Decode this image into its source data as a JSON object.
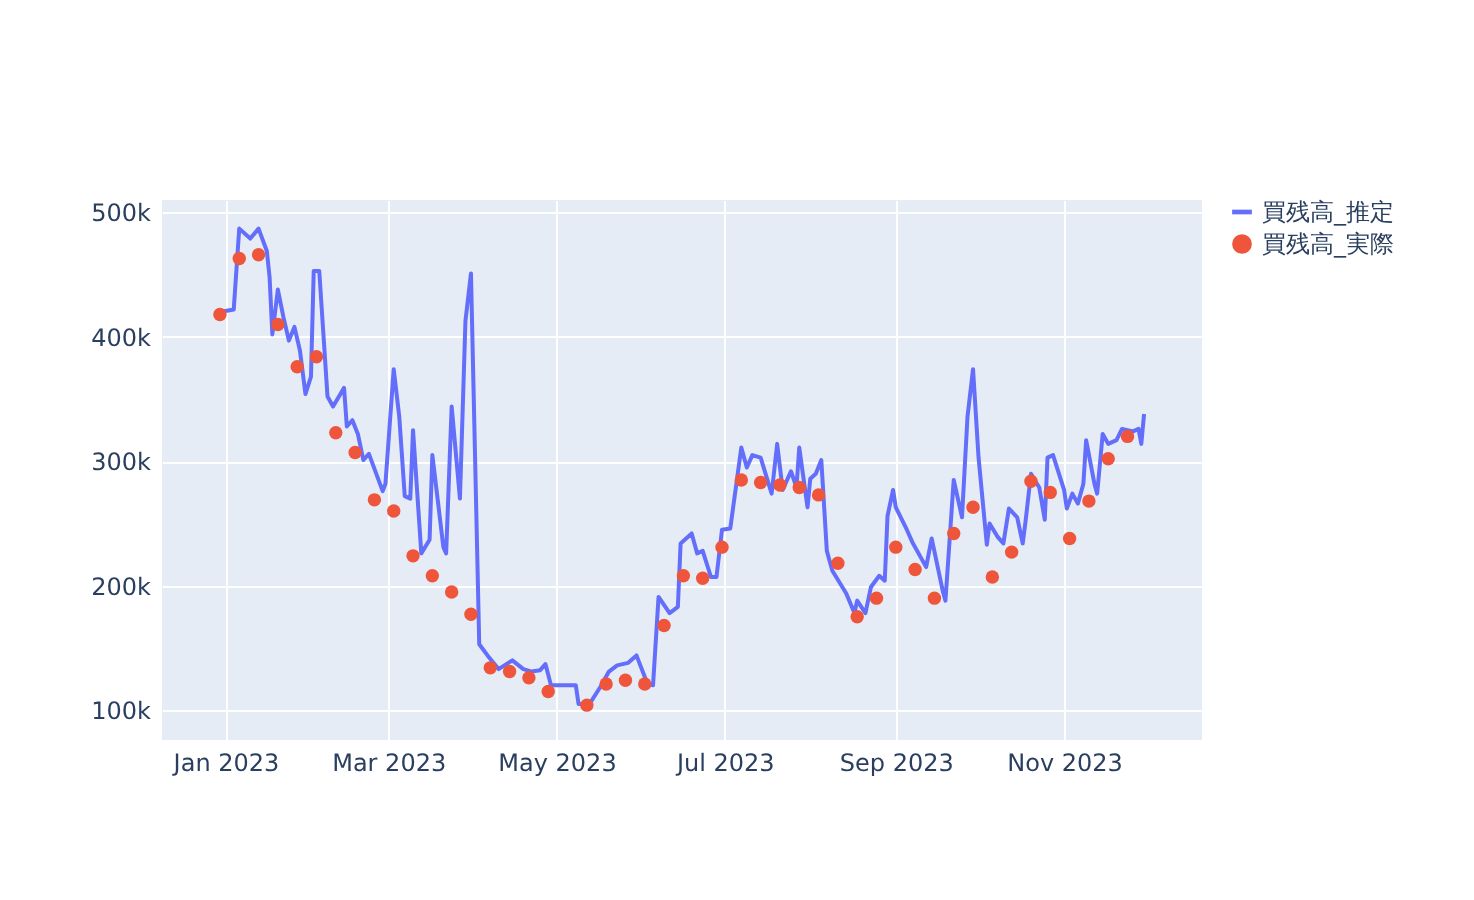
{
  "chart_data": {
    "type": "line",
    "xlim": [
      "2022-12-09",
      "2023-12-21"
    ],
    "xticks": [
      {
        "value": "2023-01-01",
        "label": "Jan 2023"
      },
      {
        "value": "2023-03-01",
        "label": "Mar 2023"
      },
      {
        "value": "2023-05-01",
        "label": "May 2023"
      },
      {
        "value": "2023-07-01",
        "label": "Jul 2023"
      },
      {
        "value": "2023-09-01",
        "label": "Sep 2023"
      },
      {
        "value": "2023-11-01",
        "label": "Nov 2023"
      }
    ],
    "ylim": [
      76000,
      510000
    ],
    "yticks": [
      {
        "value": 100000,
        "label": "100k"
      },
      {
        "value": 200000,
        "label": "200k"
      },
      {
        "value": 300000,
        "label": "300k"
      },
      {
        "value": 400000,
        "label": "400k"
      },
      {
        "value": 500000,
        "label": "500k"
      }
    ],
    "grid": true,
    "legend": "top right",
    "line_style": "solid",
    "series": [
      {
        "name": "買残高_推定",
        "type": "line",
        "marker": "none",
        "color": "#636efa",
        "x": [
          "2022-12-30",
          "2023-01-04",
          "2023-01-06",
          "2023-01-10",
          "2023-01-13",
          "2023-01-16",
          "2023-01-17",
          "2023-01-18",
          "2023-01-20",
          "2023-01-22",
          "2023-01-24",
          "2023-01-26",
          "2023-01-28",
          "2023-01-30",
          "2023-02-01",
          "2023-02-02",
          "2023-02-04",
          "2023-02-07",
          "2023-02-09",
          "2023-02-13",
          "2023-02-14",
          "2023-02-16",
          "2023-02-18",
          "2023-02-20",
          "2023-02-22",
          "2023-02-27",
          "2023-02-28",
          "2023-03-03",
          "2023-03-05",
          "2023-03-07",
          "2023-03-09",
          "2023-03-10",
          "2023-03-13",
          "2023-03-16",
          "2023-03-17",
          "2023-03-21",
          "2023-03-22",
          "2023-03-24",
          "2023-03-27",
          "2023-03-29",
          "2023-03-31",
          "2023-04-03",
          "2023-04-06",
          "2023-04-10",
          "2023-04-15",
          "2023-04-19",
          "2023-04-22",
          "2023-04-25",
          "2023-04-27",
          "2023-04-29",
          "2023-05-08",
          "2023-05-09",
          "2023-05-13",
          "2023-05-17",
          "2023-05-20",
          "2023-05-23",
          "2023-05-27",
          "2023-05-30",
          "2023-06-03",
          "2023-06-05",
          "2023-06-07",
          "2023-06-11",
          "2023-06-14",
          "2023-06-15",
          "2023-06-19",
          "2023-06-21",
          "2023-06-23",
          "2023-06-26",
          "2023-06-28",
          "2023-06-30",
          "2023-07-03",
          "2023-07-07",
          "2023-07-09",
          "2023-07-11",
          "2023-07-14",
          "2023-07-18",
          "2023-07-20",
          "2023-07-22",
          "2023-07-25",
          "2023-07-27",
          "2023-07-28",
          "2023-07-31",
          "2023-08-01",
          "2023-08-03",
          "2023-08-05",
          "2023-08-07",
          "2023-08-09",
          "2023-08-14",
          "2023-08-17",
          "2023-08-18",
          "2023-08-21",
          "2023-08-23",
          "2023-08-26",
          "2023-08-28",
          "2023-08-29",
          "2023-08-31",
          "2023-09-01",
          "2023-09-05",
          "2023-09-07",
          "2023-09-10",
          "2023-09-12",
          "2023-09-14",
          "2023-09-18",
          "2023-09-19",
          "2023-09-22",
          "2023-09-25",
          "2023-09-27",
          "2023-09-29",
          "2023-10-01",
          "2023-10-04",
          "2023-10-05",
          "2023-10-08",
          "2023-10-10",
          "2023-10-12",
          "2023-10-15",
          "2023-10-17",
          "2023-10-18",
          "2023-10-20",
          "2023-10-23",
          "2023-10-25",
          "2023-10-26",
          "2023-10-28",
          "2023-11-01",
          "2023-11-02",
          "2023-11-04",
          "2023-11-06",
          "2023-11-08",
          "2023-11-09",
          "2023-11-12",
          "2023-11-13",
          "2023-11-15",
          "2023-11-17",
          "2023-11-20",
          "2023-11-22",
          "2023-11-26",
          "2023-11-28",
          "2023-11-29",
          "2023-11-30"
        ],
        "values": [
          420000,
          422000,
          487000,
          479000,
          487000,
          469000,
          448000,
          402000,
          438000,
          416000,
          397000,
          408000,
          389000,
          354000,
          368000,
          453000,
          453000,
          352000,
          344000,
          359000,
          328000,
          333000,
          322000,
          301000,
          306000,
          276000,
          282000,
          374000,
          336000,
          272000,
          270000,
          325000,
          226000,
          237000,
          305000,
          231000,
          226000,
          344000,
          270000,
          413000,
          451000,
          153000,
          144000,
          133000,
          140000,
          133000,
          131000,
          132000,
          137000,
          120000,
          120000,
          105000,
          105000,
          119000,
          131000,
          136000,
          138000,
          144000,
          121000,
          120000,
          191000,
          178000,
          183000,
          234000,
          242000,
          226000,
          228000,
          207000,
          207000,
          245000,
          246000,
          311000,
          295000,
          305000,
          303000,
          274000,
          314000,
          277000,
          292000,
          279000,
          311000,
          263000,
          286000,
          290000,
          301000,
          228000,
          212000,
          194000,
          178000,
          188000,
          178000,
          199000,
          208000,
          204000,
          256000,
          277000,
          263000,
          245000,
          235000,
          223000,
          215000,
          238000,
          196000,
          188000,
          285000,
          255000,
          336000,
          374000,
          303000,
          233000,
          250000,
          239000,
          234000,
          262000,
          255000,
          234000,
          251000,
          290000,
          279000,
          253000,
          303000,
          305000,
          277000,
          262000,
          274000,
          266000,
          282000,
          317000,
          282000,
          274000,
          322000,
          314000,
          317000,
          326000,
          324000,
          326000,
          314000,
          338000
        ]
      },
      {
        "name": "買残高_実際",
        "type": "scatter",
        "marker": "circle",
        "color": "#ef553b",
        "x": [
          "2022-12-30",
          "2023-01-06",
          "2023-01-13",
          "2023-01-20",
          "2023-01-27",
          "2023-02-03",
          "2023-02-10",
          "2023-02-17",
          "2023-02-24",
          "2023-03-03",
          "2023-03-10",
          "2023-03-17",
          "2023-03-24",
          "2023-03-31",
          "2023-04-07",
          "2023-04-14",
          "2023-04-21",
          "2023-04-28",
          "2023-05-12",
          "2023-05-19",
          "2023-05-26",
          "2023-06-02",
          "2023-06-09",
          "2023-06-16",
          "2023-06-23",
          "2023-06-30",
          "2023-07-07",
          "2023-07-14",
          "2023-07-21",
          "2023-07-28",
          "2023-08-04",
          "2023-08-11",
          "2023-08-18",
          "2023-08-25",
          "2023-09-01",
          "2023-09-08",
          "2023-09-15",
          "2023-09-22",
          "2023-09-29",
          "2023-10-06",
          "2023-10-13",
          "2023-10-20",
          "2023-10-27",
          "2023-11-03",
          "2023-11-10",
          "2023-11-17",
          "2023-11-24"
        ],
        "values": [
          418000,
          463000,
          466000,
          410000,
          376000,
          384000,
          323000,
          307000,
          269000,
          260000,
          224000,
          208000,
          195000,
          177000,
          134000,
          131000,
          126000,
          115000,
          104000,
          121000,
          124000,
          121000,
          168000,
          208000,
          206000,
          231000,
          285000,
          283000,
          281000,
          279000,
          273000,
          218000,
          175000,
          190000,
          231000,
          213000,
          190000,
          242000,
          263000,
          207000,
          227000,
          284000,
          275000,
          238000,
          268000,
          302000,
          320000
        ]
      }
    ]
  }
}
